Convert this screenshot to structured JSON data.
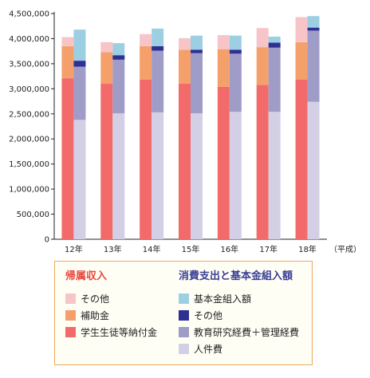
{
  "chart_data": {
    "type": "bar",
    "categories": [
      "12年",
      "13年",
      "14年",
      "15年",
      "16年",
      "17年",
      "18年"
    ],
    "x_unit_label": "（平成）",
    "ylim": [
      0,
      4500000
    ],
    "yticks": [
      "0",
      "500,000",
      "1,000,000",
      "1,500,000",
      "2,000,000",
      "2,500,000",
      "3,000,000",
      "3,500,000",
      "4,000,000",
      "4,500,000"
    ],
    "grid": false,
    "groups": [
      {
        "name": "帰属収入",
        "stacked": true,
        "series": [
          {
            "name": "学生生徒等納付金",
            "color": "#f26a6a",
            "values": [
              3210000,
              3100000,
              3180000,
              3100000,
              3040000,
              3080000,
              3180000
            ]
          },
          {
            "name": "補助金",
            "color": "#f5a06a",
            "values": [
              640000,
              630000,
              670000,
              680000,
              750000,
              750000,
              750000
            ]
          },
          {
            "name": "その他",
            "color": "#f7c5c8",
            "values": [
              180000,
              200000,
              240000,
              230000,
              280000,
              380000,
              500000
            ]
          }
        ]
      },
      {
        "name": "消費支出と基本金組入額",
        "stacked": true,
        "series": [
          {
            "name": "人件費",
            "color": "#d3d0e6",
            "values": [
              2380000,
              2510000,
              2530000,
              2510000,
              2540000,
              2540000,
              2740000
            ]
          },
          {
            "name": "教育研究経費＋管理経費",
            "color": "#9f9cc8",
            "values": [
              1060000,
              1070000,
              1230000,
              1200000,
              1160000,
              1280000,
              1420000
            ]
          },
          {
            "name": "その他",
            "color": "#2e3192",
            "values": [
              120000,
              90000,
              90000,
              70000,
              80000,
              100000,
              60000
            ]
          },
          {
            "name": "基本金組入額",
            "color": "#9dcfe3",
            "values": [
              620000,
              240000,
              350000,
              280000,
              280000,
              120000,
              230000
            ]
          }
        ]
      }
    ]
  },
  "legend": {
    "left_title": "帰属収入",
    "left_items": [
      {
        "label": "その他",
        "color": "#f7c5c8"
      },
      {
        "label": "補助金",
        "color": "#f5a06a"
      },
      {
        "label": "学生生徒等納付金",
        "color": "#f26a6a"
      }
    ],
    "right_title": "消費支出と基本金組入額",
    "right_items": [
      {
        "label": "基本金組入額",
        "color": "#9dcfe3"
      },
      {
        "label": "その他",
        "color": "#2e3192"
      },
      {
        "label": "教育研究経費＋管理経費",
        "color": "#9f9cc8"
      },
      {
        "label": "人件費",
        "color": "#d3d0e6"
      }
    ]
  }
}
